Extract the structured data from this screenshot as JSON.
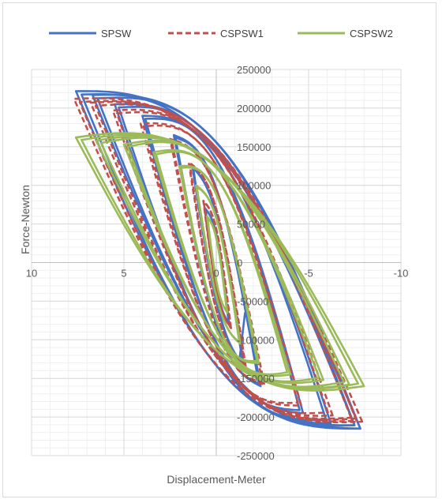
{
  "chart_data": {
    "type": "line",
    "title": "",
    "xlabel": "Displacement-Meter",
    "ylabel": "Force-Newton",
    "xlim": [
      10,
      -10
    ],
    "ylim": [
      -250000,
      250000
    ],
    "x_reversed": true,
    "x_ticks": [
      10,
      5,
      0,
      -5,
      -10
    ],
    "x_tick_labels": [
      "10",
      "5",
      "0",
      "-5",
      "-10"
    ],
    "y_ticks": [
      250000,
      200000,
      150000,
      100000,
      50000,
      0,
      -50000,
      -100000,
      -150000,
      -200000,
      -250000
    ],
    "y_tick_labels": [
      "250000",
      "200000",
      "150000",
      "100000",
      "50000",
      "0",
      "-50000",
      "-100000",
      "-150000",
      "-200000",
      "-250000"
    ],
    "grid": true,
    "minor_grid": true,
    "legend_position": "top",
    "series": [
      {
        "name": "SPSW",
        "color": "#4472C4",
        "dash": "solid",
        "loops": [
          {
            "amp_pos": 0.6,
            "amp_neg": 0.7,
            "peak_pos": 70000,
            "peak_neg": 80000,
            "h_pos": 35000,
            "h_neg": 40000
          },
          {
            "amp_pos": 1.3,
            "amp_neg": 1.5,
            "peak_pos": 125000,
            "peak_neg": 135000,
            "h_pos": 60000,
            "h_neg": 65000
          },
          {
            "amp_pos": 2.3,
            "amp_neg": 2.4,
            "peak_pos": 165000,
            "peak_neg": 160000,
            "h_pos": 95000,
            "h_neg": 100000
          },
          {
            "amp_pos": 4.0,
            "amp_neg": 4.7,
            "peak_pos": 190000,
            "peak_neg": 195000,
            "h_pos": 130000,
            "h_neg": 135000
          },
          {
            "amp_pos": 5.5,
            "amp_neg": 6.2,
            "peak_pos": 205000,
            "peak_neg": 208000,
            "h_pos": 145000,
            "h_neg": 148000
          },
          {
            "amp_pos": 6.7,
            "amp_neg": 7.8,
            "peak_pos": 217000,
            "peak_neg": 215000,
            "h_pos": 150000,
            "h_neg": 155000
          },
          {
            "amp_pos": 7.6,
            "amp_neg": 7.8,
            "peak_pos": 222000,
            "peak_neg": 215000,
            "h_pos": 155000,
            "h_neg": 155000
          }
        ],
        "tail": {
          "x": -1.2,
          "y": -137000
        }
      },
      {
        "name": "CSPSW1",
        "color": "#C0504D",
        "dash": "dashed",
        "loops": [
          {
            "amp_pos": 0.7,
            "amp_neg": 0.8,
            "peak_pos": 80000,
            "peak_neg": 85000,
            "h_pos": 40000,
            "h_neg": 45000
          },
          {
            "amp_pos": 1.5,
            "amp_neg": 1.6,
            "peak_pos": 130000,
            "peak_neg": 135000,
            "h_pos": 70000,
            "h_neg": 75000
          },
          {
            "amp_pos": 2.5,
            "amp_neg": 2.6,
            "peak_pos": 160000,
            "peak_neg": 158000,
            "h_pos": 100000,
            "h_neg": 100000
          },
          {
            "amp_pos": 4.1,
            "amp_neg": 4.6,
            "peak_pos": 180000,
            "peak_neg": 185000,
            "h_pos": 130000,
            "h_neg": 132000
          },
          {
            "amp_pos": 5.6,
            "amp_neg": 6.3,
            "peak_pos": 197000,
            "peak_neg": 198000,
            "h_pos": 143000,
            "h_neg": 145000
          },
          {
            "amp_pos": 6.8,
            "amp_neg": 7.6,
            "peak_pos": 207000,
            "peak_neg": 205000,
            "h_pos": 150000,
            "h_neg": 152000
          },
          {
            "amp_pos": 7.7,
            "amp_neg": 7.9,
            "peak_pos": 212000,
            "peak_neg": 206000,
            "h_pos": 153000,
            "h_neg": 153000
          }
        ]
      },
      {
        "name": "CSPSW2",
        "color": "#9BBB59",
        "dash": "solid",
        "loops": [
          {
            "amp_pos": 0.5,
            "amp_neg": 0.6,
            "peak_pos": 60000,
            "peak_neg": 65000,
            "h_pos": 30000,
            "h_neg": 32000
          },
          {
            "amp_pos": 1.1,
            "amp_neg": 1.3,
            "peak_pos": 100000,
            "peak_neg": 105000,
            "h_pos": 55000,
            "h_neg": 58000
          },
          {
            "amp_pos": 2.0,
            "amp_neg": 2.3,
            "peak_pos": 125000,
            "peak_neg": 130000,
            "h_pos": 90000,
            "h_neg": 92000
          },
          {
            "amp_pos": 3.4,
            "amp_neg": 4.0,
            "peak_pos": 143000,
            "peak_neg": 145000,
            "h_pos": 110000,
            "h_neg": 112000
          },
          {
            "amp_pos": 5.0,
            "amp_neg": 5.8,
            "peak_pos": 153000,
            "peak_neg": 152000,
            "h_pos": 122000,
            "h_neg": 124000
          },
          {
            "amp_pos": 6.5,
            "amp_neg": 7.2,
            "peak_pos": 158000,
            "peak_neg": 158000,
            "h_pos": 128000,
            "h_neg": 130000
          },
          {
            "amp_pos": 7.6,
            "amp_neg": 8.0,
            "peak_pos": 162000,
            "peak_neg": 160000,
            "h_pos": 132000,
            "h_neg": 132000
          }
        ]
      }
    ]
  }
}
